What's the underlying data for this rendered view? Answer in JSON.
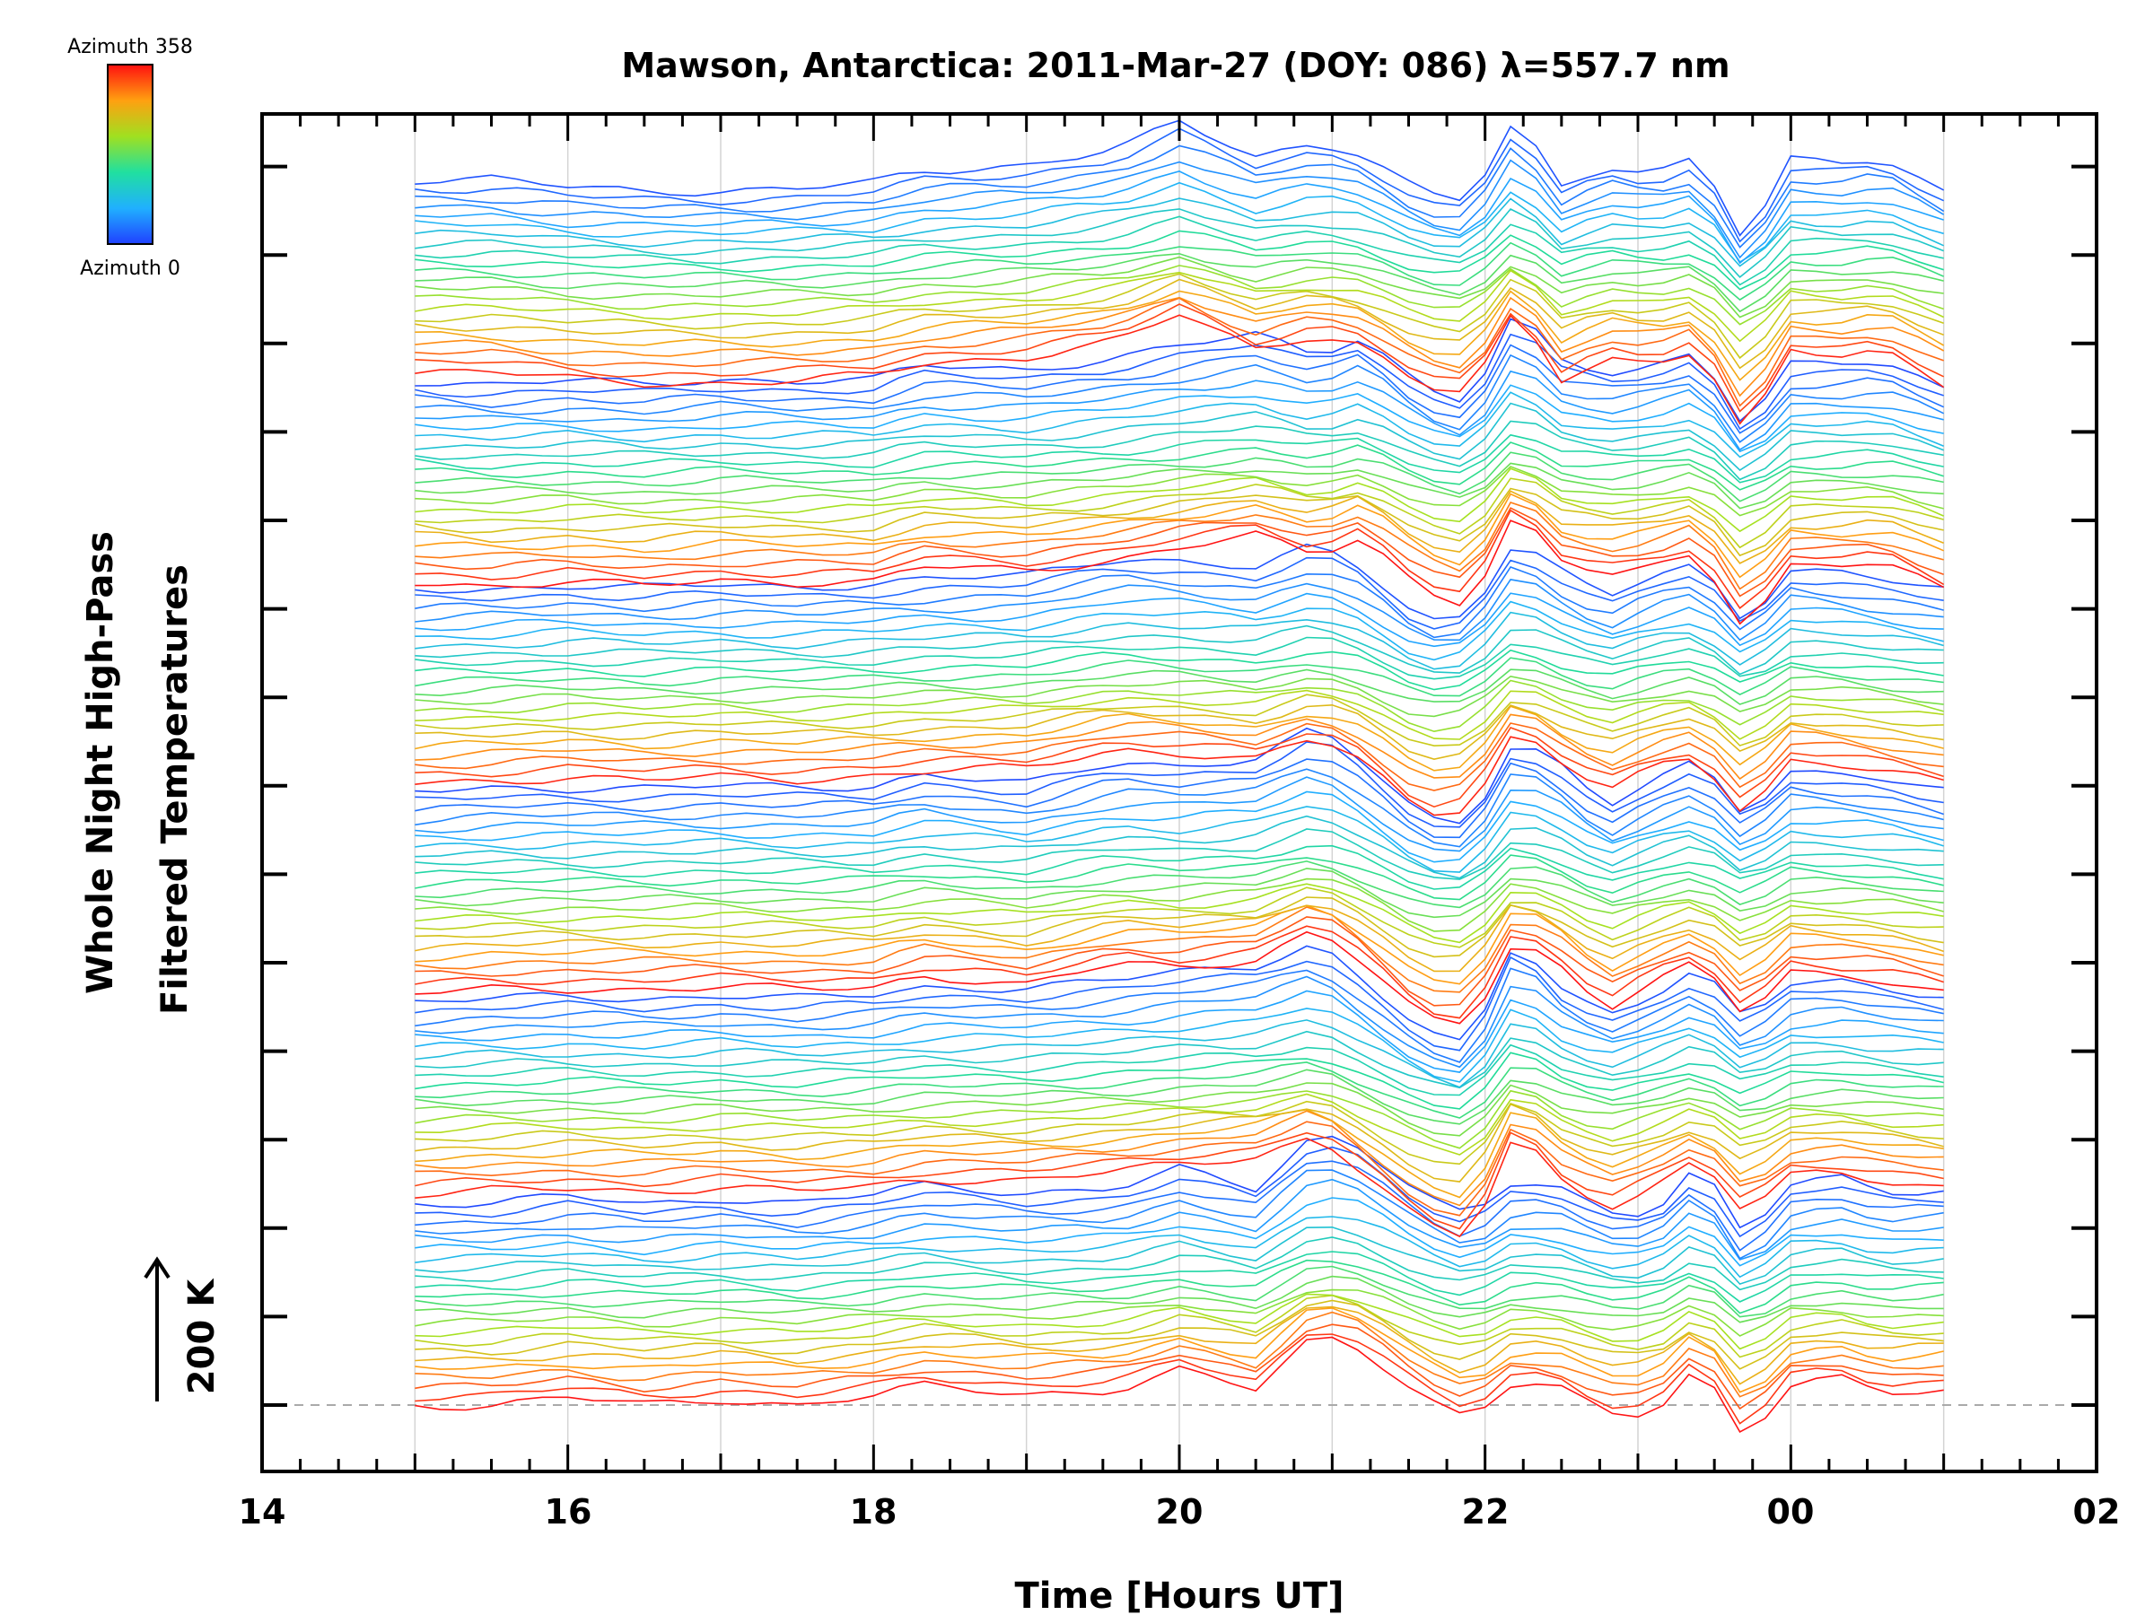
{
  "chart_data": {
    "type": "line",
    "title": "Mawson, Antarctica: 2011-Mar-27 (DOY: 086) λ=557.7 nm",
    "xlabel": "Time [Hours UT]",
    "ylabel_lines": [
      "Whole Night High-Pass",
      "Filtered Temperatures"
    ],
    "x_tick_labels": [
      "14",
      "16",
      "18",
      "20",
      "22",
      "00",
      "02"
    ],
    "x_tick_hours": [
      14,
      16,
      18,
      20,
      22,
      24,
      26
    ],
    "xlim": [
      14,
      26
    ],
    "data_x_range": [
      15,
      25
    ],
    "scale_bar_label": "200 K",
    "colorbar": {
      "max_label": "Azimuth 358",
      "min_label": "Azimuth 0"
    },
    "grid": true,
    "series_count": 135,
    "azimuth_sectors": 6,
    "key_times": [
      15.0,
      15.5,
      16.0,
      16.5,
      17.0,
      17.5,
      18.0,
      18.3,
      19.0,
      19.6,
      20.0,
      20.5,
      20.9,
      21.2,
      21.6,
      21.9,
      22.2,
      22.5,
      22.8,
      23.1,
      23.4,
      23.7,
      24.0,
      24.3,
      24.6,
      25.0
    ],
    "sector_profiles": [
      [
        0,
        0,
        10,
        0,
        8,
        0,
        12,
        25,
        15,
        20,
        45,
        20,
        95,
        75,
        10,
        -20,
        30,
        20,
        -10,
        -10,
        55,
        -45,
        25,
        35,
        15,
        20
      ],
      [
        0,
        5,
        8,
        5,
        10,
        5,
        10,
        20,
        20,
        30,
        40,
        50,
        80,
        30,
        -40,
        -60,
        85,
        20,
        -15,
        10,
        45,
        -25,
        25,
        30,
        20,
        10
      ],
      [
        0,
        5,
        6,
        6,
        8,
        6,
        8,
        25,
        10,
        40,
        35,
        45,
        85,
        40,
        -35,
        -40,
        75,
        35,
        -20,
        15,
        40,
        -30,
        30,
        25,
        20,
        0
      ],
      [
        0,
        3,
        8,
        4,
        8,
        5,
        10,
        15,
        20,
        45,
        40,
        30,
        60,
        30,
        -40,
        -30,
        70,
        25,
        -10,
        20,
        35,
        -40,
        30,
        25,
        15,
        0
      ],
      [
        0,
        -5,
        0,
        -5,
        2,
        0,
        0,
        20,
        15,
        30,
        45,
        60,
        35,
        60,
        -10,
        -30,
        90,
        25,
        10,
        20,
        40,
        -60,
        20,
        20,
        25,
        -10
      ],
      [
        0,
        0,
        -10,
        -15,
        -15,
        -12,
        -5,
        10,
        20,
        40,
        75,
        30,
        50,
        35,
        -20,
        -30,
        80,
        -10,
        20,
        10,
        30,
        -85,
        25,
        20,
        30,
        -15
      ]
    ]
  }
}
